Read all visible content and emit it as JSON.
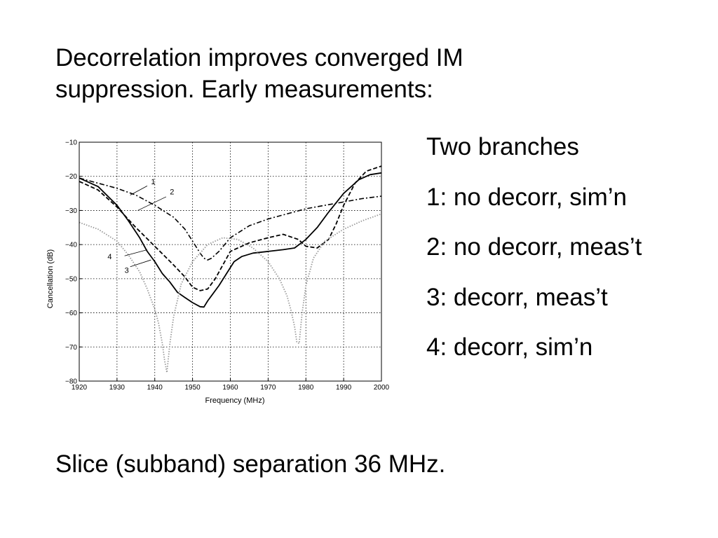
{
  "slide": {
    "title_lines": [
      "Decorrelation improves converged IM",
      "suppression.  Early measurements:"
    ],
    "legend_items": [
      "Two branches",
      "1: no decorr, sim’n",
      "2: no decorr, meas’t",
      "3: decorr, meas’t",
      "4: decorr, sim’n"
    ],
    "footer": "Slice (subband) separation 36 MHz."
  },
  "chart_data": {
    "type": "line",
    "xlabel": "Frequency (MHz)",
    "ylabel": "Cancellation (dB)",
    "xlim": [
      1920,
      2000
    ],
    "ylim": [
      -80,
      -10
    ],
    "xticks": [
      1920,
      1930,
      1940,
      1950,
      1960,
      1970,
      1980,
      1990,
      2000
    ],
    "yticks": [
      -10,
      -20,
      -30,
      -40,
      -50,
      -60,
      -70,
      -80
    ],
    "grid": true,
    "series": [
      {
        "name": "1",
        "style": "dashdot",
        "color": "#000000",
        "x": [
          1920,
          1925,
          1930,
          1935,
          1940,
          1945,
          1948,
          1950,
          1952,
          1953,
          1954,
          1955,
          1957,
          1960,
          1965,
          1970,
          1975,
          1980,
          1985,
          1990,
          1995,
          2000
        ],
        "y": [
          -20.5,
          -22,
          -23.5,
          -25.5,
          -28.5,
          -32,
          -35.5,
          -39,
          -42.5,
          -44,
          -44.5,
          -44,
          -42,
          -38,
          -34.5,
          -32.5,
          -31,
          -29.5,
          -28.5,
          -27.5,
          -26.5,
          -25.8
        ]
      },
      {
        "name": "2",
        "style": "dashed",
        "color": "#000000",
        "x": [
          1920,
          1925,
          1930,
          1935,
          1940,
          1945,
          1948,
          1950,
          1952,
          1954,
          1956,
          1958,
          1960,
          1965,
          1970,
          1974,
          1978,
          1980,
          1983,
          1986,
          1988,
          1990,
          1993,
          1996,
          2000
        ],
        "y": [
          -21.5,
          -24,
          -29,
          -35,
          -40.5,
          -46,
          -49.5,
          -52.5,
          -53.5,
          -53,
          -50,
          -46,
          -42,
          -39.5,
          -38,
          -37,
          -38.5,
          -40.5,
          -41,
          -38.5,
          -34,
          -28.5,
          -22,
          -18.5,
          -17
        ]
      },
      {
        "name": "3",
        "style": "solid",
        "color": "#000000",
        "x": [
          1920,
          1925,
          1930,
          1933,
          1936,
          1938,
          1940,
          1942,
          1944,
          1946,
          1948,
          1950,
          1952,
          1953,
          1954,
          1955,
          1957,
          1959,
          1961,
          1963,
          1966,
          1970,
          1974,
          1977,
          1980,
          1983,
          1986,
          1990,
          1994,
          1997,
          2000
        ],
        "y": [
          -20.5,
          -23,
          -28.5,
          -33,
          -38,
          -42,
          -45,
          -48.5,
          -51,
          -54,
          -55.5,
          -57,
          -58.2,
          -58.3,
          -56.5,
          -55,
          -52,
          -48.5,
          -45,
          -43.5,
          -42.5,
          -42,
          -41.5,
          -41,
          -38.5,
          -35,
          -30.5,
          -25,
          -21,
          -19.5,
          -19
        ]
      },
      {
        "name": "4",
        "style": "dotted",
        "color": "#999999",
        "x": [
          1920,
          1925,
          1930,
          1933,
          1936,
          1938,
          1940,
          1941,
          1942,
          1942.6,
          1943.2,
          1944,
          1945,
          1947,
          1950,
          1954,
          1958,
          1962,
          1966,
          1970,
          1973,
          1975,
          1976,
          1977,
          1977.6,
          1978.2,
          1979,
          1980,
          1982,
          1985,
          1990,
          1995,
          2000
        ],
        "y": [
          -33.5,
          -35.5,
          -39,
          -43,
          -48,
          -53,
          -59,
          -63,
          -69,
          -74,
          -77.5,
          -69,
          -61,
          -51.5,
          -45,
          -40,
          -38,
          -38.5,
          -41,
          -45,
          -50,
          -55,
          -59,
          -64,
          -68.5,
          -69,
          -60,
          -52,
          -44,
          -39,
          -35.5,
          -33,
          -31
        ]
      }
    ],
    "callouts": [
      "1",
      "2",
      "3",
      "4"
    ]
  }
}
